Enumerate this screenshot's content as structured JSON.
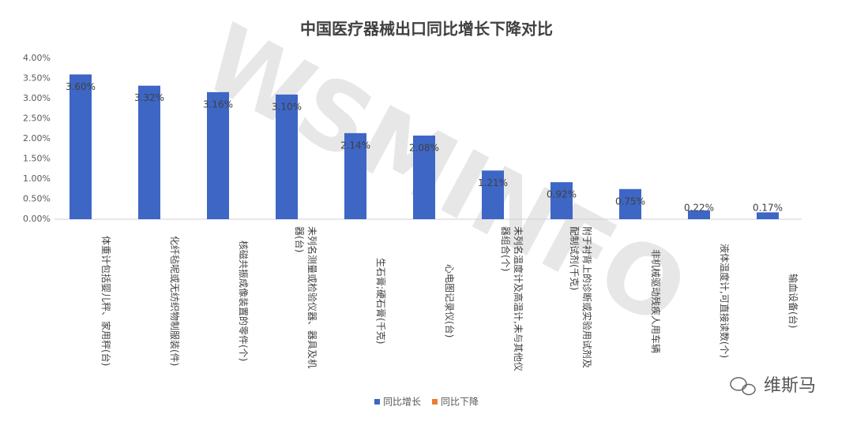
{
  "chart_data": {
    "type": "bar",
    "title": "中国医疗器械出口同比增长下降对比",
    "categories": [
      "体重计包括婴儿秤、家用秤(台)",
      "化纤毡呢或无纺织物制服装(件)",
      "核磁共振成像装置的零件(个)",
      "未列名测量或检验仪器、器具及机器(台)",
      "生石膏;硬石膏(千克)",
      "心电图记录仪(台)",
      "未列名温度计及高温计,未与其他仪器组合(个)",
      "附于衬背上的诊断或实验用试剂及配制试剂(千克)",
      "非机械驱动残疾人用车辆",
      "液体温度计,可直接读数(个)",
      "输血设备(台)"
    ],
    "series": [
      {
        "name": "同比增长",
        "color": "#3d66c5",
        "values": [
          3.6,
          3.32,
          3.16,
          3.1,
          2.14,
          2.08,
          1.21,
          0.92,
          0.75,
          0.22,
          0.17
        ],
        "value_labels": [
          "3.60%",
          "3.32%",
          "3.16%",
          "3.10%",
          "2.14%",
          "2.08%",
          "1.21%",
          "0.92%",
          "0.75%",
          "0.22%",
          "0.17%"
        ]
      },
      {
        "name": "同比下降",
        "color": "#ed7d31",
        "values": [
          null,
          null,
          null,
          null,
          null,
          null,
          null,
          null,
          null,
          null,
          null
        ]
      }
    ],
    "ylim": [
      0,
      4
    ],
    "yticks": [
      {
        "value": 0,
        "label": "0.00%"
      },
      {
        "value": 0.5,
        "label": "0.50%"
      },
      {
        "value": 1,
        "label": "1.00%"
      },
      {
        "value": 1.5,
        "label": "1.50%"
      },
      {
        "value": 2,
        "label": "2.00%"
      },
      {
        "value": 2.5,
        "label": "2.50%"
      },
      {
        "value": 3,
        "label": "3.00%"
      },
      {
        "value": 3.5,
        "label": "3.50%"
      },
      {
        "value": 4,
        "label": "4.00%"
      }
    ],
    "grid": false,
    "legend": "bottom",
    "watermark": "WSMINFO",
    "brand": "维斯马"
  }
}
